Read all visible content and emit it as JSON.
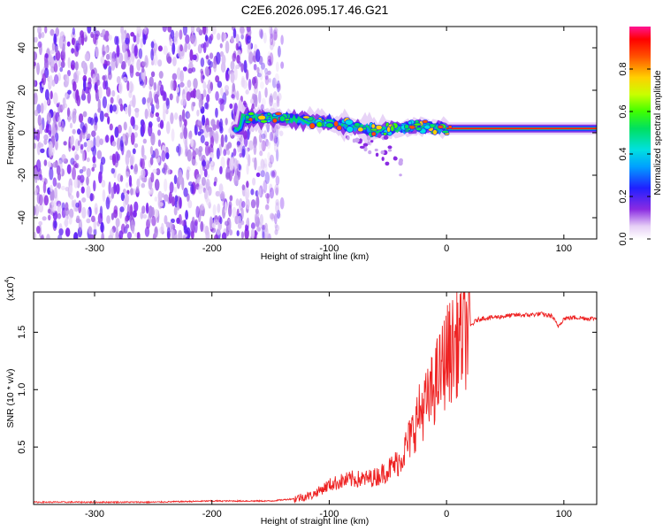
{
  "chart_data": [
    {
      "type": "heatmap",
      "title": "C2E6.2026.095.17.46.G21",
      "xlabel": "Height of straight line (km)",
      "ylabel": "Frequency (Hz)",
      "xlim": [
        -352,
        128
      ],
      "ylim": [
        -50,
        50
      ],
      "xticks": [
        -300,
        -200,
        -100,
        0,
        100
      ],
      "yticks": [
        -40,
        -20,
        0,
        20,
        40
      ],
      "colorbar": {
        "label": "Normalized spectral amplitude",
        "range": [
          0,
          1
        ],
        "ticks": [
          "0.0",
          "0.2",
          "0.4",
          "0.6",
          "0.8"
        ]
      },
      "features": [
        {
          "name": "noise",
          "x_range": [
            -352,
            -140
          ],
          "description_level": "low amplitude random speckle"
        },
        {
          "name": "signal-band",
          "x": [
            -175,
            -150,
            -125,
            -100,
            -80,
            -60,
            -40,
            -20,
            0,
            20,
            60,
            90,
            128
          ],
          "center_hz": [
            7,
            7,
            6,
            5,
            3,
            1,
            2,
            3,
            2,
            2,
            2,
            2,
            2
          ]
        }
      ]
    },
    {
      "type": "line",
      "title": "",
      "xlabel": "Height of straight line (km)",
      "ylabel": "SNR (10 * v/v)",
      "multiplier_label": "(x10",
      "multiplier_exp": "4",
      "xlim": [
        -352,
        128
      ],
      "ylim": [
        0,
        1.85
      ],
      "xticks": [
        -300,
        -200,
        -100,
        0,
        100
      ],
      "yticks": [
        "0.5",
        "1.0",
        "1.5"
      ],
      "series": [
        {
          "name": "SNR",
          "color": "#ee2222",
          "x": [
            -352,
            -300,
            -250,
            -200,
            -150,
            -130,
            -115,
            -105,
            -100,
            -90,
            -80,
            -70,
            -60,
            -50,
            -40,
            -30,
            -25,
            -20,
            -15,
            -10,
            -5,
            0,
            5,
            10,
            15,
            20,
            25,
            30,
            40,
            50,
            60,
            70,
            80,
            90,
            95,
            100,
            110,
            120,
            128
          ],
          "values": [
            0.02,
            0.02,
            0.02,
            0.03,
            0.03,
            0.05,
            0.08,
            0.14,
            0.17,
            0.2,
            0.22,
            0.22,
            0.24,
            0.3,
            0.38,
            0.6,
            0.75,
            0.85,
            0.9,
            1.05,
            1.15,
            1.3,
            1.35,
            1.45,
            1.5,
            1.55,
            1.6,
            1.62,
            1.63,
            1.64,
            1.65,
            1.65,
            1.66,
            1.64,
            1.55,
            1.62,
            1.63,
            1.62,
            1.62
          ]
        }
      ]
    }
  ]
}
